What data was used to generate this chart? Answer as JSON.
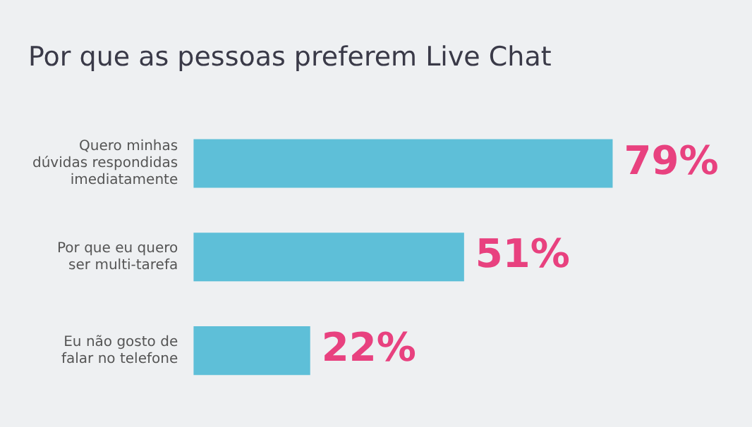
{
  "chart_data": {
    "type": "bar",
    "orientation": "horizontal",
    "title": "Por que as pessoas preferem Live Chat",
    "categories": [
      "Quero minhas dúvidas respondidas imediatamente",
      "Por que eu quero ser multi-tarefa",
      "Eu não gosto de falar no telefone"
    ],
    "values": [
      79,
      51,
      22
    ],
    "value_labels": [
      "79%",
      "51%",
      "22%"
    ],
    "color": "#5ebfd8",
    "grid": false,
    "legend": false
  }
}
